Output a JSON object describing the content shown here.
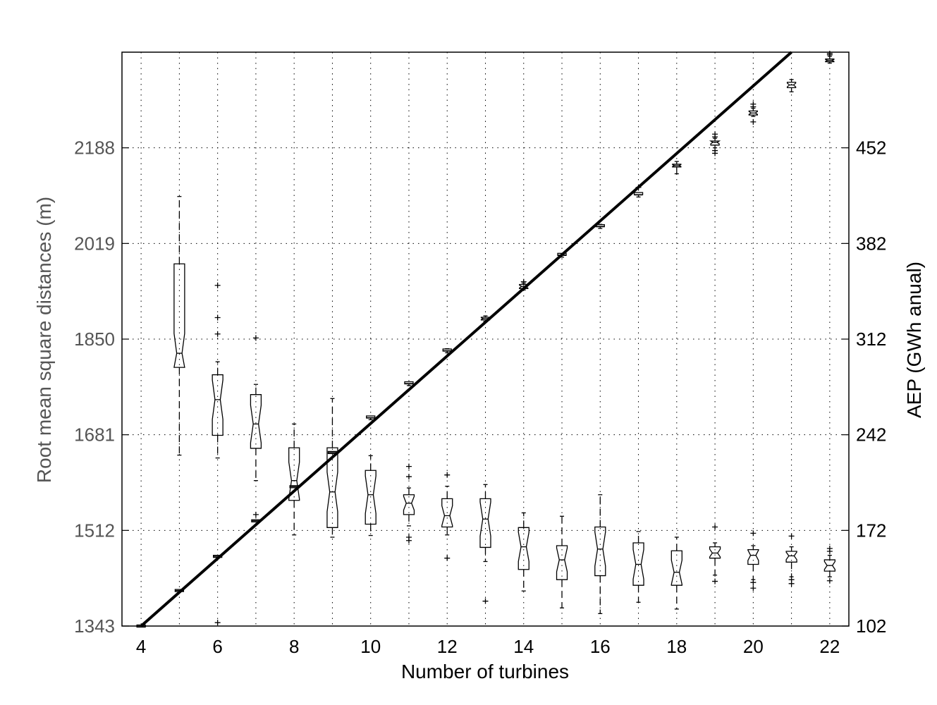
{
  "chart_data": {
    "type": "box",
    "xlabel": "Number of turbines",
    "ylabel_left": "Root mean square distances (m)",
    "ylabel_right": "AEP (GWh anual)",
    "xlim": [
      3.5,
      22.5
    ],
    "x_ticks": [
      4,
      6,
      8,
      10,
      12,
      14,
      16,
      18,
      20,
      22
    ],
    "y_left_lim": [
      1343,
      2357
    ],
    "y_left_ticks": [
      1343,
      1512,
      1681,
      1850,
      2019,
      2188
    ],
    "y_right_lim": [
      102,
      522
    ],
    "y_right_ticks": [
      102,
      172,
      242,
      312,
      382,
      452
    ],
    "grid": true,
    "colors": {
      "left_axis_text": "#555555",
      "right_axis_text": "#000000",
      "line": "#000000"
    },
    "trend_line": {
      "axis": "right",
      "x": [
        4,
        21
      ],
      "y": [
        102,
        522
      ]
    },
    "distance_boxes": [
      {
        "x": 5,
        "whisker_low": 1645,
        "q1": 1800,
        "median": 1825,
        "q3": 1983,
        "whisker_high": 2102,
        "outliers": []
      },
      {
        "x": 6,
        "whisker_low": 1640,
        "q1": 1680,
        "median": 1743,
        "q3": 1787,
        "whisker_high": 1810,
        "outliers": [
          1349,
          1859,
          1888,
          1945
        ]
      },
      {
        "x": 7,
        "whisker_low": 1600,
        "q1": 1657,
        "median": 1700,
        "q3": 1752,
        "whisker_high": 1770,
        "outliers": [
          1540,
          1852
        ]
      },
      {
        "x": 8,
        "whisker_low": 1504,
        "q1": 1565,
        "median": 1600,
        "q3": 1658,
        "whisker_high": 1700,
        "outliers": []
      },
      {
        "x": 9,
        "whisker_low": 1500,
        "q1": 1517,
        "median": 1580,
        "q3": 1658,
        "whisker_high": 1745,
        "outliers": []
      },
      {
        "x": 10,
        "whisker_low": 1503,
        "q1": 1523,
        "median": 1575,
        "q3": 1618,
        "whisker_high": 1644,
        "outliers": []
      },
      {
        "x": 11,
        "whisker_low": 1520,
        "q1": 1540,
        "median": 1560,
        "q3": 1575,
        "whisker_high": 1587,
        "outliers": [
          1494,
          1500,
          1607,
          1625
        ]
      },
      {
        "x": 12,
        "whisker_low": 1504,
        "q1": 1518,
        "median": 1538,
        "q3": 1568,
        "whisker_high": 1590,
        "outliers": [
          1463,
          1610
        ]
      },
      {
        "x": 13,
        "whisker_low": 1457,
        "q1": 1482,
        "median": 1532,
        "q3": 1568,
        "whisker_high": 1593,
        "outliers": [
          1387
        ]
      },
      {
        "x": 14,
        "whisker_low": 1405,
        "q1": 1443,
        "median": 1483,
        "q3": 1517,
        "whisker_high": 1543,
        "outliers": []
      },
      {
        "x": 15,
        "whisker_low": 1375,
        "q1": 1425,
        "median": 1460,
        "q3": 1485,
        "whisker_high": 1537,
        "outliers": []
      },
      {
        "x": 16,
        "whisker_low": 1365,
        "q1": 1432,
        "median": 1479,
        "q3": 1518,
        "whisker_high": 1575,
        "outliers": []
      },
      {
        "x": 17,
        "whisker_low": 1385,
        "q1": 1415,
        "median": 1452,
        "q3": 1490,
        "whisker_high": 1510,
        "outliers": []
      },
      {
        "x": 18,
        "whisker_low": 1373,
        "q1": 1415,
        "median": 1438,
        "q3": 1476,
        "whisker_high": 1500,
        "outliers": []
      },
      {
        "x": 19,
        "whisker_low": 1433,
        "q1": 1463,
        "median": 1472,
        "q3": 1483,
        "whisker_high": 1490,
        "outliers": [
          1422,
          1518
        ]
      },
      {
        "x": 20,
        "whisker_low": 1425,
        "q1": 1452,
        "median": 1468,
        "q3": 1478,
        "whisker_high": 1485,
        "outliers": [
          1410,
          1420,
          1507
        ]
      },
      {
        "x": 21,
        "whisker_low": 1430,
        "q1": 1456,
        "median": 1467,
        "q3": 1475,
        "whisker_high": 1483,
        "outliers": [
          1418,
          1425,
          1502
        ]
      },
      {
        "x": 22,
        "whisker_low": 1430,
        "q1": 1440,
        "median": 1450,
        "q3": 1460,
        "whisker_high": 1468,
        "outliers": [
          1423,
          1475,
          1480
        ]
      }
    ],
    "aep_boxes": [
      {
        "x": 4,
        "whisker_low": 102,
        "q1": 102,
        "median": 102,
        "q3": 102,
        "whisker_high": 102,
        "outliers": []
      },
      {
        "x": 5,
        "whisker_low": 128,
        "q1": 128,
        "median": 128,
        "q3": 128,
        "whisker_high": 128,
        "outliers": []
      },
      {
        "x": 6,
        "whisker_low": 153,
        "q1": 153,
        "median": 153,
        "q3": 153,
        "whisker_high": 153,
        "outliers": []
      },
      {
        "x": 7,
        "whisker_low": 179,
        "q1": 179,
        "median": 179,
        "q3": 179,
        "whisker_high": 179,
        "outliers": []
      },
      {
        "x": 8,
        "whisker_low": 204,
        "q1": 204,
        "median": 204,
        "q3": 204,
        "whisker_high": 204,
        "outliers": []
      },
      {
        "x": 9,
        "whisker_low": 229,
        "q1": 229,
        "median": 229,
        "q3": 229,
        "whisker_high": 229,
        "outliers": []
      },
      {
        "x": 10,
        "whisker_low": 253,
        "q1": 254,
        "median": 254.5,
        "q3": 255,
        "whisker_high": 255,
        "outliers": []
      },
      {
        "x": 11,
        "whisker_low": 278,
        "q1": 279,
        "median": 279.5,
        "q3": 280,
        "whisker_high": 280,
        "outliers": []
      },
      {
        "x": 12,
        "whisker_low": 302,
        "q1": 303,
        "median": 303.5,
        "q3": 304,
        "whisker_high": 305,
        "outliers": []
      },
      {
        "x": 13,
        "whisker_low": 325,
        "q1": 326,
        "median": 327,
        "q3": 328,
        "whisker_high": 329,
        "outliers": []
      },
      {
        "x": 14,
        "whisker_low": 348,
        "q1": 349,
        "median": 350.5,
        "q3": 352,
        "whisker_high": 353,
        "outliers": [
          354
        ]
      },
      {
        "x": 15,
        "whisker_low": 372,
        "q1": 373,
        "median": 373.5,
        "q3": 374,
        "whisker_high": 374,
        "outliers": []
      },
      {
        "x": 16,
        "whisker_low": 393,
        "q1": 394,
        "median": 394.5,
        "q3": 395,
        "whisker_high": 396,
        "outliers": []
      },
      {
        "x": 17,
        "whisker_low": 416,
        "q1": 417,
        "median": 417.5,
        "q3": 418.5,
        "whisker_high": 419,
        "outliers": [
          423
        ]
      },
      {
        "x": 18,
        "whisker_low": 433,
        "q1": 438,
        "median": 439,
        "q3": 440,
        "whisker_high": 442,
        "outliers": []
      },
      {
        "x": 19,
        "whisker_low": 452,
        "q1": 454,
        "median": 456,
        "q3": 457,
        "whisker_high": 459,
        "outliers": [
          448,
          450,
          460,
          462
        ]
      },
      {
        "x": 20,
        "whisker_low": 475,
        "q1": 476,
        "median": 477.5,
        "q3": 479,
        "whisker_high": 481,
        "outliers": [
          471,
          482,
          484
        ]
      },
      {
        "x": 21,
        "whisker_low": 493,
        "q1": 496,
        "median": 498,
        "q3": 500,
        "whisker_high": 502,
        "outliers": []
      },
      {
        "x": 22,
        "whisker_low": 514,
        "q1": 515,
        "median": 516,
        "q3": 517,
        "whisker_high": 519,
        "outliers": [
          520,
          521
        ]
      }
    ]
  }
}
